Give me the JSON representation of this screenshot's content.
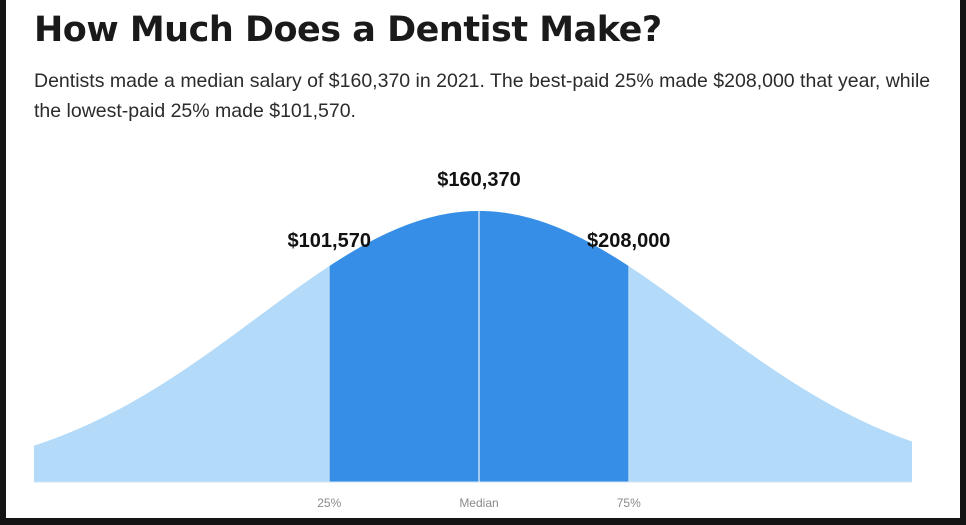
{
  "title": "How Much Does a Dentist Make?",
  "subtitle": "Dentists made a median salary of $160,370 in 2021. The best-paid 25% made $208,000 that year, while the lowest-paid 25% made $101,570.",
  "colors": {
    "outer_fill": "#b3dbf9",
    "inner_fill": "#368ee6",
    "marker_line": "#dcdcdc",
    "median_line": "#ffffff",
    "baseline": "#cfe3f3"
  },
  "chart_data": {
    "type": "area",
    "title": "",
    "xlabel": "",
    "ylabel": "",
    "distribution": "normal",
    "markers": [
      {
        "tick_label": "25%",
        "value_label": "$101,570",
        "percentile": 25,
        "value": 101570
      },
      {
        "tick_label": "Median",
        "value_label": "$160,370",
        "percentile": 50,
        "value": 160370
      },
      {
        "tick_label": "75%",
        "value_label": "$208,000",
        "percentile": 75,
        "value": 208000
      }
    ],
    "highlight_range": [
      25,
      75
    ],
    "grid": false,
    "legend": "none"
  }
}
